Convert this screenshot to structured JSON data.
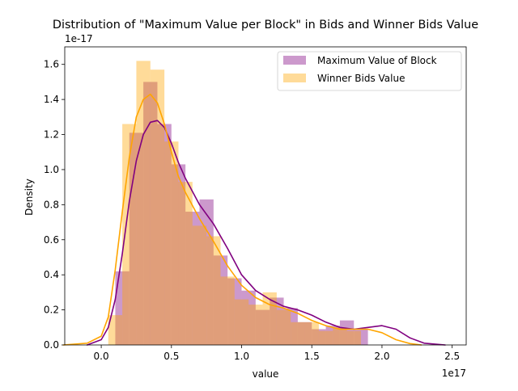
{
  "chart_data": {
    "type": "histogram",
    "title": "Distribution of \"Maximum Value per Block\" in Bids and Winner Bids Value",
    "xlabel": "value",
    "ylabel": "Density",
    "x_offset_label": "1e17",
    "y_offset_label": "1e-17",
    "x_unit_scale": 1e+17,
    "y_unit_scale": 1e-17,
    "xlim": [
      -0.26,
      2.6
    ],
    "ylim": [
      0,
      1.7
    ],
    "x_ticks": [
      {
        "value": 0.0,
        "label": "0.0"
      },
      {
        "value": 0.5,
        "label": "0.5"
      },
      {
        "value": 1.0,
        "label": "1.0"
      },
      {
        "value": 1.5,
        "label": "1.5"
      },
      {
        "value": 2.0,
        "label": "2.0"
      },
      {
        "value": 2.5,
        "label": "2.5"
      }
    ],
    "y_ticks": [
      {
        "value": 0.0,
        "label": "0.0"
      },
      {
        "value": 0.2,
        "label": "0.2"
      },
      {
        "value": 0.4,
        "label": "0.4"
      },
      {
        "value": 0.6,
        "label": "0.6"
      },
      {
        "value": 0.8,
        "label": "0.8"
      },
      {
        "value": 1.0,
        "label": "1.0"
      },
      {
        "value": 1.2,
        "label": "1.2"
      },
      {
        "value": 1.4,
        "label": "1.4"
      },
      {
        "value": 1.6,
        "label": "1.6"
      }
    ],
    "grid": false,
    "legend_position": "top-right",
    "series": [
      {
        "name": "Maximum Value of Block",
        "color": "#800080",
        "bar_opacity": 0.4,
        "bin_start": 0.1,
        "bin_width": 0.1,
        "bin_heights": [
          0.42,
          1.21,
          1.5,
          1.26,
          1.03,
          0.76,
          0.83,
          0.51,
          0.38,
          0.31,
          0.2,
          0.27,
          0.21,
          0.13,
          0.09,
          0.11,
          0.14,
          0.09
        ],
        "kde_x": [
          -0.1,
          0.0,
          0.05,
          0.1,
          0.15,
          0.2,
          0.25,
          0.3,
          0.35,
          0.4,
          0.45,
          0.5,
          0.55,
          0.6,
          0.7,
          0.8,
          0.9,
          1.0,
          1.1,
          1.2,
          1.3,
          1.4,
          1.5,
          1.6,
          1.7,
          1.8,
          1.9,
          2.0,
          2.1,
          2.2,
          2.3,
          2.4,
          2.45
        ],
        "kde_y": [
          0.0,
          0.03,
          0.1,
          0.26,
          0.52,
          0.82,
          1.05,
          1.2,
          1.27,
          1.28,
          1.24,
          1.15,
          1.04,
          0.95,
          0.8,
          0.69,
          0.55,
          0.4,
          0.31,
          0.26,
          0.22,
          0.2,
          0.17,
          0.13,
          0.1,
          0.09,
          0.1,
          0.11,
          0.09,
          0.04,
          0.01,
          0.003,
          0.0
        ]
      },
      {
        "name": "Winner Bids Value",
        "color": "#FFA500",
        "bar_opacity": 0.4,
        "bin_start": 0.05,
        "bin_width": 0.1,
        "bin_heights": [
          0.17,
          1.26,
          1.62,
          1.57,
          1.16,
          0.93,
          0.68,
          0.62,
          0.39,
          0.26,
          0.23,
          0.3,
          0.2,
          0.13,
          0.13,
          0.08,
          0.1,
          0.08
        ],
        "kde_x": [
          -0.27,
          -0.1,
          0.0,
          0.05,
          0.1,
          0.15,
          0.2,
          0.25,
          0.3,
          0.35,
          0.4,
          0.45,
          0.5,
          0.55,
          0.6,
          0.7,
          0.8,
          0.9,
          1.0,
          1.1,
          1.2,
          1.3,
          1.4,
          1.5,
          1.6,
          1.7,
          1.8,
          1.9,
          2.0,
          2.1,
          2.2,
          2.28
        ],
        "kde_y": [
          0.0,
          0.01,
          0.05,
          0.16,
          0.43,
          0.76,
          1.07,
          1.3,
          1.4,
          1.43,
          1.38,
          1.26,
          1.1,
          0.96,
          0.87,
          0.72,
          0.59,
          0.45,
          0.34,
          0.27,
          0.23,
          0.21,
          0.18,
          0.14,
          0.11,
          0.09,
          0.09,
          0.09,
          0.07,
          0.03,
          0.008,
          0.0
        ]
      }
    ]
  }
}
